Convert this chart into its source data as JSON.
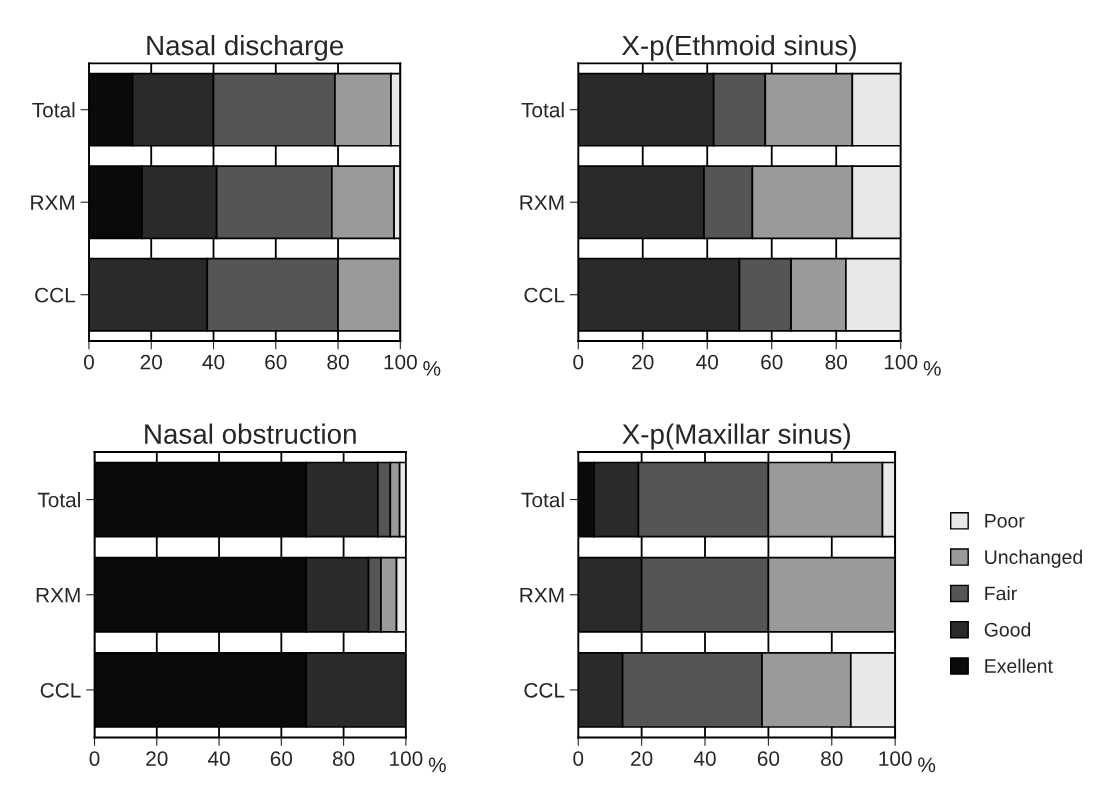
{
  "chart_data": [
    {
      "type": "bar",
      "title": "Nasal discharge",
      "xlabel": "%",
      "orientation": "horizontal",
      "stacked": true,
      "categories": [
        "Total",
        "RXM",
        "CCL"
      ],
      "xlim": [
        0,
        100
      ],
      "xticks": [
        0,
        20,
        40,
        60,
        80,
        100
      ],
      "grid": "x",
      "series": [
        {
          "color": "#0a0a0a",
          "values": [
            14,
            17,
            0
          ]
        },
        {
          "color": "#2a2a2a",
          "values": [
            26,
            24,
            38
          ]
        },
        {
          "color": "#555555",
          "values": [
            39,
            37,
            42
          ]
        },
        {
          "color": "#9a9a9a",
          "values": [
            18,
            20,
            20
          ]
        },
        {
          "color": "#e8e8e8",
          "values": [
            3,
            2,
            0
          ]
        }
      ]
    },
    {
      "type": "bar",
      "title": "X-p(Ethmoid sinus)",
      "xlabel": "%",
      "orientation": "horizontal",
      "stacked": true,
      "categories": [
        "Total",
        "RXM",
        "CCL"
      ],
      "xlim": [
        0,
        100
      ],
      "xticks": [
        0,
        20,
        40,
        60,
        80,
        100
      ],
      "grid": "x",
      "series": [
        {
          "color": "#0a0a0a",
          "values": [
            0,
            0,
            0
          ]
        },
        {
          "color": "#2a2a2a",
          "values": [
            42,
            39,
            50
          ]
        },
        {
          "color": "#555555",
          "values": [
            16,
            15,
            16
          ]
        },
        {
          "color": "#9a9a9a",
          "values": [
            27,
            31,
            17
          ]
        },
        {
          "color": "#e8e8e8",
          "values": [
            15,
            15,
            17
          ]
        }
      ]
    },
    {
      "type": "bar",
      "title": "Nasal obstruction",
      "xlabel": "%",
      "orientation": "horizontal",
      "stacked": true,
      "categories": [
        "Total",
        "RXM",
        "CCL"
      ],
      "xlim": [
        0,
        100
      ],
      "xticks": [
        0,
        20,
        40,
        60,
        80,
        100
      ],
      "grid": "x",
      "series": [
        {
          "color": "#0a0a0a",
          "values": [
            68,
            68,
            68
          ]
        },
        {
          "color": "#2a2a2a",
          "values": [
            23,
            20,
            32
          ]
        },
        {
          "color": "#555555",
          "values": [
            4,
            4,
            0
          ]
        },
        {
          "color": "#9a9a9a",
          "values": [
            3,
            5,
            0
          ]
        },
        {
          "color": "#e8e8e8",
          "values": [
            2,
            3,
            0
          ]
        }
      ]
    },
    {
      "type": "bar",
      "title": "X-p(Maxillar sinus)",
      "xlabel": "%",
      "orientation": "horizontal",
      "stacked": true,
      "categories": [
        "Total",
        "RXM",
        "CCL"
      ],
      "xlim": [
        0,
        100
      ],
      "xticks": [
        0,
        20,
        40,
        60,
        80,
        100
      ],
      "grid": "x",
      "legend": "right",
      "series": [
        {
          "name": "Exellent",
          "color": "#0a0a0a",
          "values": [
            5,
            0,
            0
          ]
        },
        {
          "name": "Good",
          "color": "#2a2a2a",
          "values": [
            14,
            20,
            14
          ]
        },
        {
          "name": "Fair",
          "color": "#555555",
          "values": [
            41,
            40,
            44
          ]
        },
        {
          "name": "Unchanged",
          "color": "#9a9a9a",
          "values": [
            36,
            40,
            28
          ]
        },
        {
          "name": "Poor",
          "color": "#e8e8e8",
          "values": [
            4,
            0,
            14
          ]
        }
      ]
    }
  ]
}
